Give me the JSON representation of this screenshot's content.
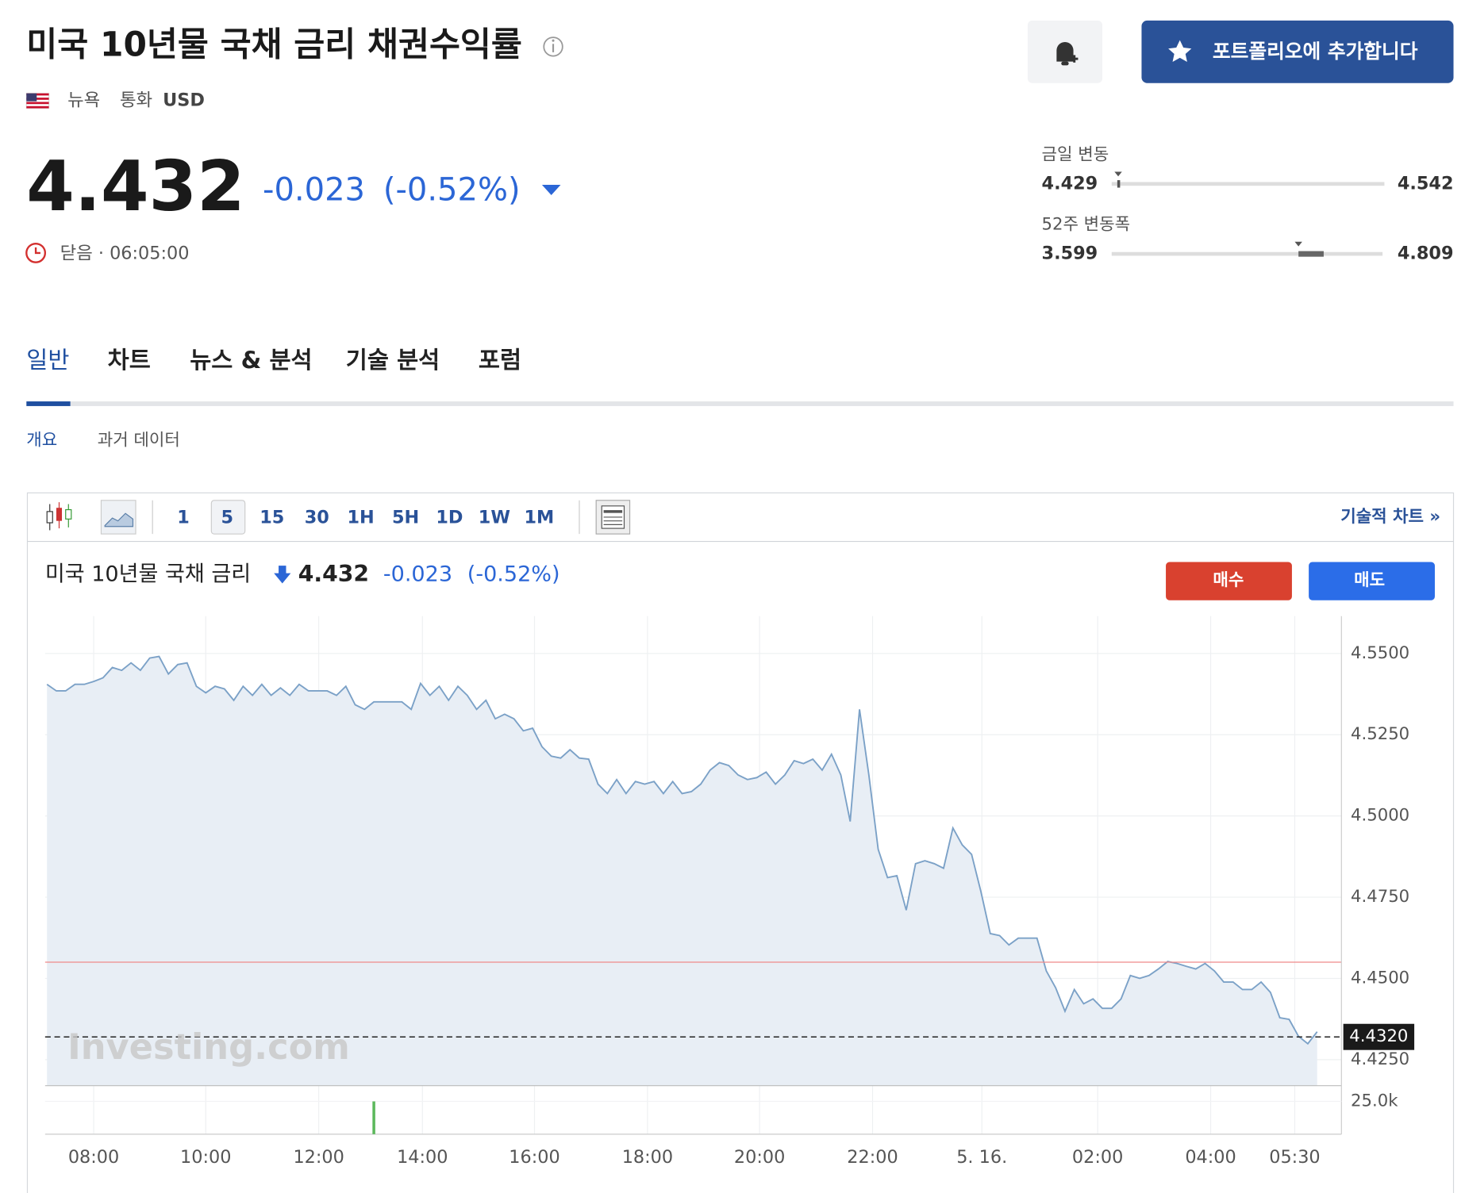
{
  "header": {
    "title": "미국 10년물 국채 금리 채권수익률",
    "exchange": "뉴욕",
    "currency_label": "통화",
    "currency": "USD",
    "portfolio_button": "포트폴리오에 추가합니다"
  },
  "quote": {
    "price": "4.432",
    "change": "-0.023",
    "change_pct": "(-0.52%)",
    "status": "닫음 · 06:05:00"
  },
  "ranges": {
    "day": {
      "label": "금일 변동",
      "low": "4.429",
      "high": "4.542"
    },
    "week52": {
      "label": "52주 변동폭",
      "low": "3.599",
      "high": "4.809"
    }
  },
  "tabs": [
    "일반",
    "차트",
    "뉴스 & 분석",
    "기술 분석",
    "포럼"
  ],
  "subtabs": [
    "개요",
    "과거 데이터"
  ],
  "toolbar": {
    "intervals": [
      "1",
      "5",
      "15",
      "30",
      "1H",
      "5H",
      "1D",
      "1W",
      "1M"
    ],
    "tech_link": "기술적 차트 »"
  },
  "chart_header": {
    "name": "미국 10년물 국채 금리",
    "price": "4.432",
    "change": "-0.023",
    "change_pct": "(-0.52%)",
    "buy": "매수",
    "sell": "매도"
  },
  "chart": {
    "type": "line",
    "color": "#7ba1c7",
    "fill": "#e8eef5",
    "ylim": [
      4.417,
      4.5615
    ],
    "yticks": [
      {
        "value": 4.55,
        "label": "4.5500"
      },
      {
        "value": 4.525,
        "label": "4.5250"
      },
      {
        "value": 4.5,
        "label": "4.5000"
      },
      {
        "value": 4.475,
        "label": "4.4750"
      },
      {
        "value": 4.45,
        "label": "4.4500"
      },
      {
        "value": 4.425,
        "label": "4.4250"
      }
    ],
    "x_labels": [
      "08:00",
      "10:00",
      "12:00",
      "14:00",
      "16:00",
      "18:00",
      "20:00",
      "22:00",
      "5. 16.",
      "02:00",
      "04:00",
      "05:30"
    ],
    "values": [
      4.5405,
      4.5385,
      4.5385,
      4.5405,
      4.5405,
      4.5414,
      4.5425,
      4.5457,
      4.5448,
      4.5471,
      4.5448,
      4.5486,
      4.5491,
      4.5437,
      4.5466,
      4.5471,
      4.5399,
      4.5379,
      4.5399,
      4.5391,
      4.5356,
      4.5399,
      4.5371,
      4.5405,
      4.5371,
      4.5394,
      4.5371,
      4.5405,
      4.5385,
      4.5385,
      4.5385,
      4.5371,
      4.5399,
      4.5342,
      4.5328,
      4.5351,
      4.5351,
      4.5351,
      4.5351,
      4.5328,
      4.5408,
      4.5371,
      4.5399,
      4.5356,
      4.5399,
      4.5371,
      4.5328,
      4.5356,
      4.5299,
      4.5313,
      4.5299,
      4.5262,
      4.527,
      4.5213,
      4.5184,
      4.5178,
      4.5204,
      4.5178,
      4.5175,
      4.5098,
      4.5069,
      4.5112,
      4.5069,
      4.5106,
      4.5098,
      4.5106,
      4.5069,
      4.5106,
      4.5069,
      4.5075,
      4.5098,
      4.5141,
      4.5164,
      4.5155,
      4.5126,
      4.5112,
      4.5118,
      4.5135,
      4.5098,
      4.5126,
      4.517,
      4.5161,
      4.5175,
      4.5141,
      4.519,
      4.5126,
      4.4983,
      4.5328,
      4.5126,
      4.4897,
      4.481,
      4.4816,
      4.471,
      4.4853,
      4.4862,
      4.4853,
      4.4839,
      4.4963,
      4.4911,
      4.4882,
      4.4767,
      4.4638,
      4.4632,
      4.4603,
      4.4624,
      4.4624,
      4.4624,
      4.4523,
      4.4471,
      4.4399,
      4.4466,
      4.4422,
      4.4437,
      4.4408,
      4.4408,
      4.4437,
      4.4509,
      4.45,
      4.4509,
      4.4529,
      4.4552,
      4.4546,
      4.4537,
      4.4529,
      4.4546,
      4.4523,
      4.4489,
      4.4489,
      4.4466,
      4.4466,
      4.4489,
      4.4457,
      4.4379,
      4.4374,
      4.4322,
      4.4299,
      4.4336
    ],
    "prev_close_line": 4.455,
    "prev_close_color": "#ef8a8a",
    "last_label": {
      "value": 4.432,
      "label": "4.4320"
    },
    "watermark": "Investing.com",
    "volume": {
      "ylim": [
        0,
        37000
      ],
      "yticks": [
        {
          "value": 25000,
          "label": "25.0k"
        }
      ],
      "values": [
        25000
      ],
      "color": "#5cb85c"
    }
  }
}
